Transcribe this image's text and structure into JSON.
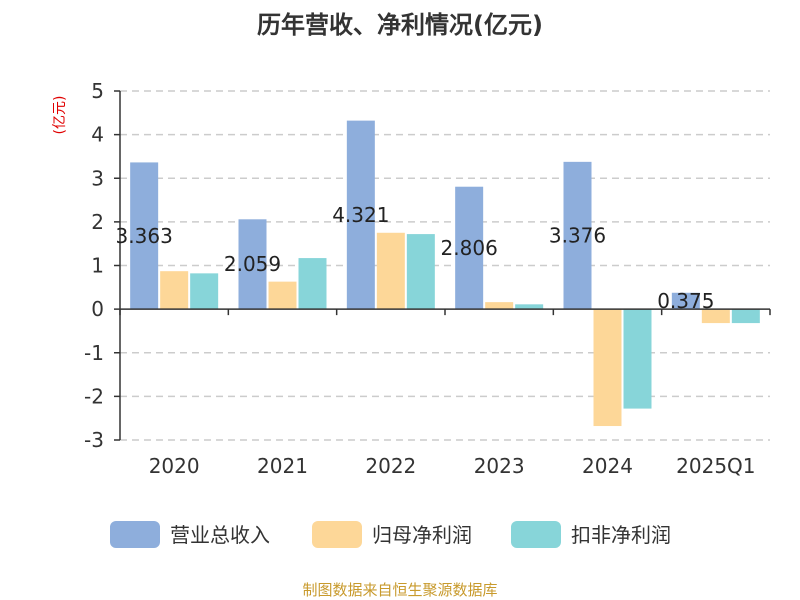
{
  "chart_data": {
    "type": "bar",
    "title": "历年营收、净利情况(亿元)",
    "ylabel": "(亿元)",
    "categories": [
      "2020",
      "2021",
      "2022",
      "2023",
      "2024",
      "2025Q1"
    ],
    "ylim": [
      -3,
      5
    ],
    "yticks": [
      5,
      4,
      3,
      2,
      1,
      0,
      -1,
      -2,
      -3
    ],
    "grid": true,
    "legend_position": "bottom",
    "series": [
      {
        "name": "营业总收入",
        "color": "#8eaedc",
        "values": [
          3.363,
          2.059,
          4.321,
          2.806,
          3.376,
          0.375
        ]
      },
      {
        "name": "归母净利润",
        "color": "#fdd798",
        "values": [
          0.87,
          0.63,
          1.75,
          0.16,
          -2.68,
          -0.32
        ]
      },
      {
        "name": "扣非净利润",
        "color": "#87d5d9",
        "values": [
          0.82,
          1.17,
          1.72,
          0.11,
          -2.28,
          -0.32
        ]
      }
    ],
    "data_labels": [
      "3.363",
      "2.059",
      "4.321",
      "2.806",
      "3.376",
      "0.375"
    ],
    "source": "制图数据来自恒生聚源数据库"
  }
}
